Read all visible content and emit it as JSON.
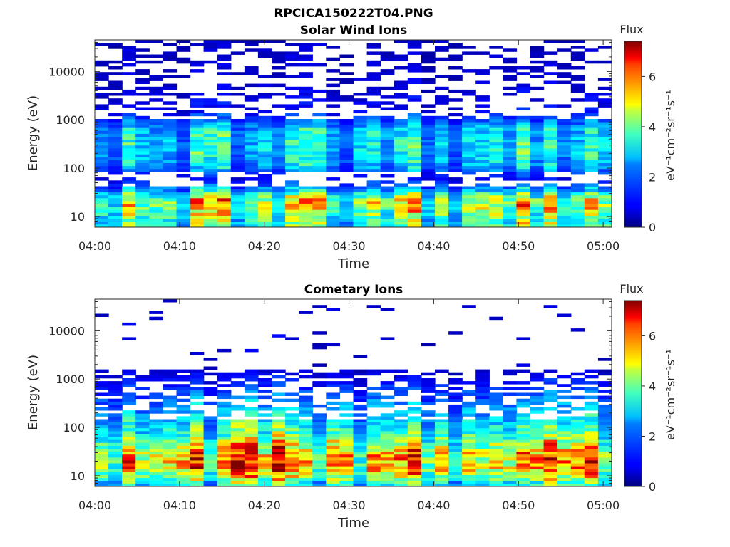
{
  "figure": {
    "filename_title": "RPCICA150222T04.PNG",
    "panels": [
      {
        "title": "Solar Wind Ions",
        "xlabel": "Time",
        "ylabel": "Energy (eV)",
        "colorbar_title": "Flux",
        "colorbar_label": "eV⁻¹cm⁻²sr⁻¹s⁻¹"
      },
      {
        "title": "Cometary Ions",
        "xlabel": "Time",
        "ylabel": "Energy (eV)",
        "colorbar_title": "Flux",
        "colorbar_label": "eV⁻¹cm⁻²sr⁻¹s⁻¹"
      }
    ]
  },
  "chart_data": [
    {
      "type": "heatmap",
      "title": "Solar Wind Ions",
      "xlabel": "Time",
      "ylabel": "Energy (eV)",
      "x_ticks": [
        "04:00",
        "04:10",
        "04:20",
        "04:30",
        "04:40",
        "04:50",
        "05:00"
      ],
      "xlim": [
        "04:00",
        "05:01"
      ],
      "y_scale": "log",
      "y_ticks": [
        10,
        100,
        1000,
        10000
      ],
      "ylim": [
        6,
        45000
      ],
      "colorbar": {
        "title": "Flux",
        "label": "eV-1cm-2sr-1s-1",
        "range": [
          0,
          7.4
        ],
        "ticks": [
          0,
          2,
          4,
          6
        ],
        "colormap": "jet"
      },
      "profile": [
        {
          "energy": 9,
          "flux": 3.2
        },
        {
          "energy": 14,
          "flux": 3.8
        },
        {
          "energy": 22,
          "flux": 4.2
        },
        {
          "energy": 35,
          "flux": 2.2
        },
        {
          "energy": 60,
          "flux": 0.9
        },
        {
          "energy": 120,
          "flux": 2.2
        },
        {
          "energy": 250,
          "flux": 2.6
        },
        {
          "energy": 600,
          "flux": 2.4
        },
        {
          "energy": 1500,
          "flux": 0.8
        },
        {
          "energy": 5000,
          "flux": 0.6
        },
        {
          "energy": 30000,
          "flux": 0.5
        }
      ],
      "sparse_above_eV": 1000
    },
    {
      "type": "heatmap",
      "title": "Cometary Ions",
      "xlabel": "Time",
      "ylabel": "Energy (eV)",
      "x_ticks": [
        "04:00",
        "04:10",
        "04:20",
        "04:30",
        "04:40",
        "04:50",
        "05:00"
      ],
      "xlim": [
        "04:00",
        "05:01"
      ],
      "y_scale": "log",
      "y_ticks": [
        10,
        100,
        1000,
        10000
      ],
      "ylim": [
        6,
        45000
      ],
      "colorbar": {
        "title": "Flux",
        "label": "eV-1cm-2sr-1s-1",
        "range": [
          0,
          7.4
        ],
        "ticks": [
          0,
          2,
          4,
          6
        ],
        "colormap": "jet"
      },
      "profile": [
        {
          "energy": 7,
          "flux": 2.8
        },
        {
          "energy": 10,
          "flux": 4.2
        },
        {
          "energy": 15,
          "flux": 5.0
        },
        {
          "energy": 25,
          "flux": 5.2
        },
        {
          "energy": 40,
          "flux": 4.4
        },
        {
          "energy": 70,
          "flux": 3.2
        },
        {
          "energy": 130,
          "flux": 2.6
        },
        {
          "energy": 300,
          "flux": 2.0
        },
        {
          "energy": 700,
          "flux": 1.2
        },
        {
          "energy": 1500,
          "flux": 0.6
        }
      ],
      "sparse_above_eV": 1500
    }
  ]
}
